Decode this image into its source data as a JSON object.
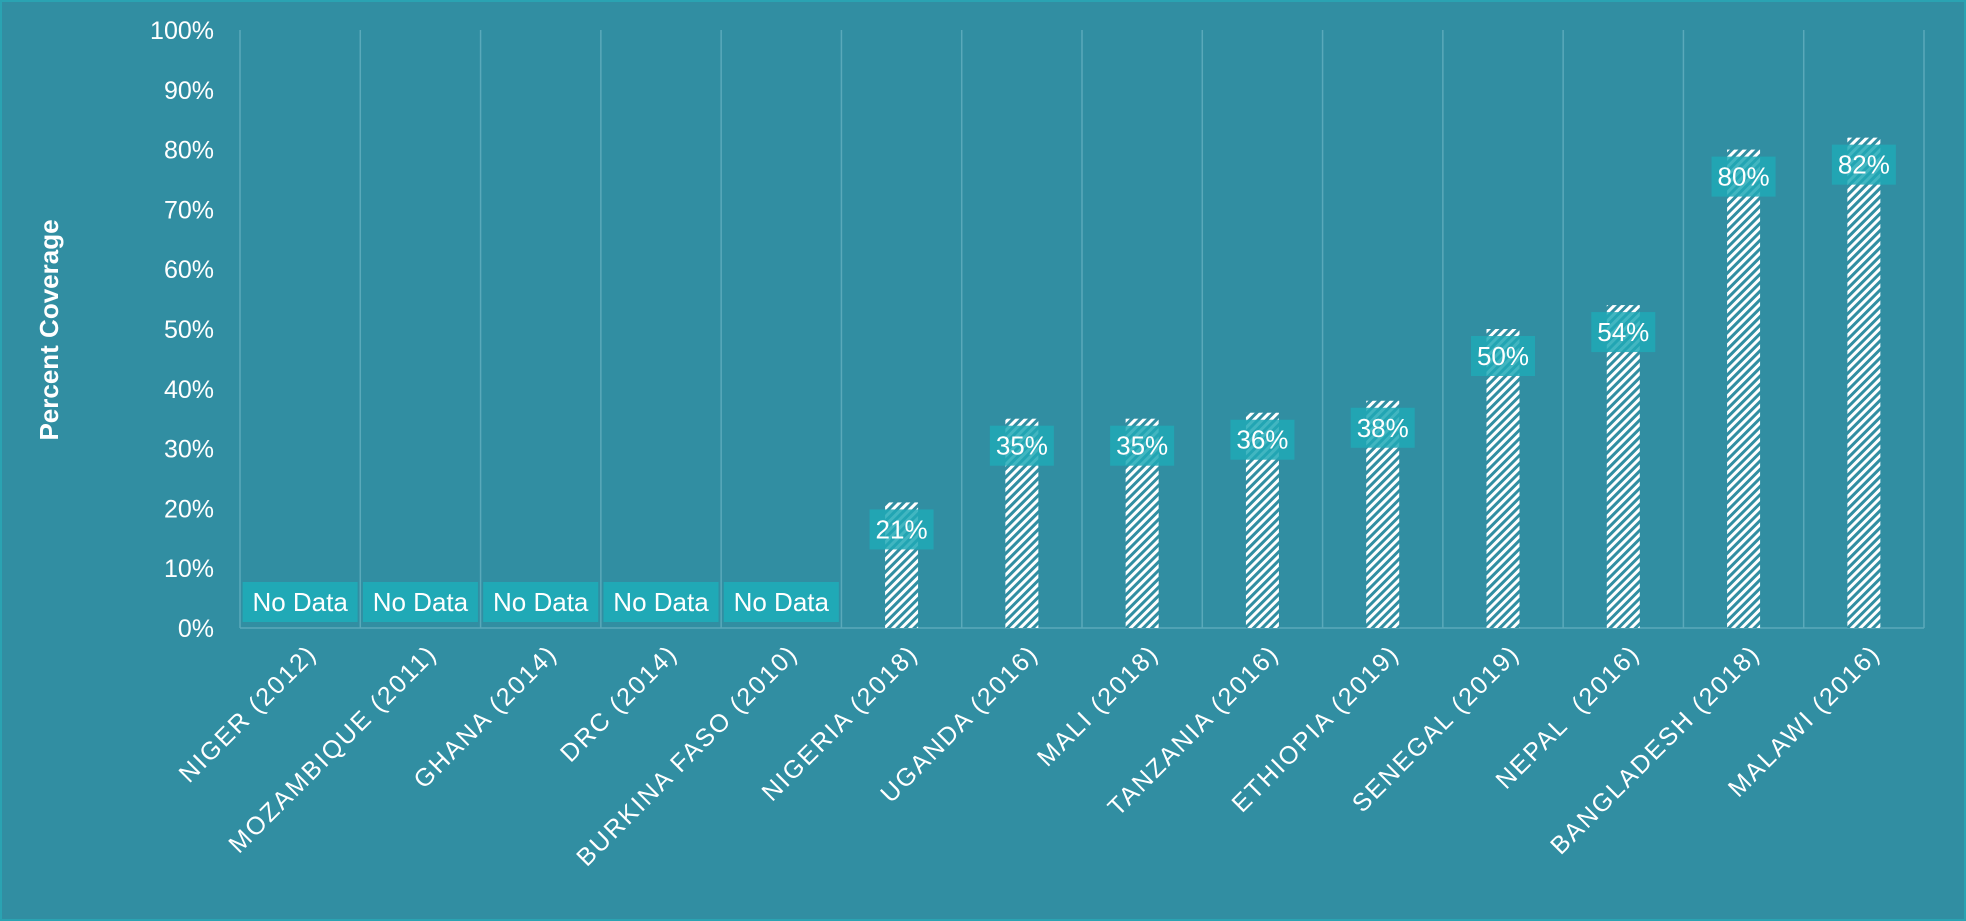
{
  "chart_data": {
    "type": "bar",
    "ylabel": "Percent Coverage",
    "ylim": [
      0,
      100
    ],
    "yticks": [
      "0%",
      "10%",
      "20%",
      "30%",
      "40%",
      "50%",
      "60%",
      "70%",
      "80%",
      "90%",
      "100%"
    ],
    "categories": [
      "NIGER (2012)",
      "MOZAMBIQUE (2011)",
      "GHANA (2014)",
      "DRC (2014)",
      "BURKINA FASO (2010)",
      "NIGERIA (2018)",
      "UGANDA (2016)",
      "MALI (2018)",
      "TANZANIA (2016)",
      "ETHIOPIA (2019)",
      "SENEGAL (2019)",
      "NEPAL  (2016)",
      "BANGLADESH (2018)",
      "MALAWI (2016)"
    ],
    "values": [
      null,
      null,
      null,
      null,
      null,
      21,
      35,
      35,
      36,
      38,
      50,
      54,
      80,
      82
    ],
    "data_labels": [
      "No Data",
      "No Data",
      "No Data",
      "No Data",
      "No Data",
      "21%",
      "35%",
      "35%",
      "36%",
      "38%",
      "50%",
      "54%",
      "80%",
      "82%"
    ],
    "grid": "vertical",
    "colors": {
      "background": "#318ea2",
      "bar": "#ffffff",
      "label_box": "#20a9b6",
      "gridline": "#5aa9ba",
      "text": "#ffffff"
    }
  }
}
